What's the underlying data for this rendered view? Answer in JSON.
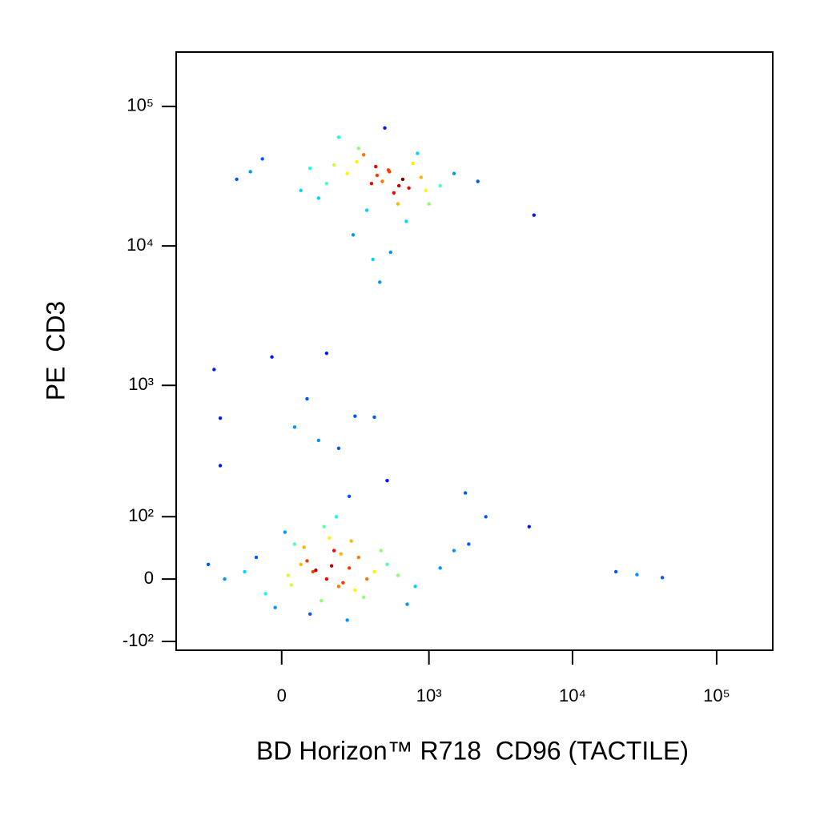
{
  "chart_data": {
    "type": "scatter",
    "x_label": "BD Horizon™ R718  CD96 (TACTILE)",
    "y_label": "PE  CD3",
    "x_scale": "biexponential",
    "y_scale": "biexponential",
    "xlim": [
      -500,
      245000
    ],
    "ylim": [
      -120,
      245000
    ],
    "xticks": [
      0,
      {
        "value": 1000,
        "label": "10³"
      },
      {
        "value": 10000,
        "label": "10⁴"
      },
      {
        "value": 100000,
        "label": "10⁵"
      }
    ],
    "yticks": [
      {
        "value": -100,
        "label": "-10²"
      },
      0,
      {
        "value": 100,
        "label": "10²"
      },
      {
        "value": 1000,
        "label": "10³"
      },
      {
        "value": 10000,
        "label": "10⁴"
      },
      {
        "value": 100000,
        "label": "10⁵"
      }
    ],
    "color_map": "jet",
    "series": [
      {
        "x": [
          420,
          380,
          510,
          290,
          650,
          720,
          180,
          240,
          330,
          460,
          560,
          880,
          1200,
          90,
          -60,
          -150,
          120,
          300,
          410,
          520,
          610,
          770,
          950,
          1500,
          2200,
          350,
          270,
          200,
          480,
          600,
          690,
          830,
          150,
          60,
          -100,
          390,
          440,
          530,
          1000,
          5400,
          100,
          150,
          60,
          200,
          250,
          20,
          -50,
          -120,
          300,
          180,
          130,
          80,
          220,
          350,
          400,
          500,
          40,
          -20,
          160,
          280,
          90,
          210,
          600,
          800,
          1200,
          -200,
          -280,
          10,
          140,
          330,
          70,
          190,
          240,
          450,
          110,
          30,
          260,
          700,
          -80,
          170,
          -250,
          -220,
          -30,
          150,
          280,
          80,
          120,
          400,
          500,
          200,
          -220,
          40,
          250,
          1800,
          2500,
          5000,
          20000,
          28000,
          42000,
          1500,
          1900
        ],
        "y": [
          32000,
          28000,
          35000,
          40000,
          30000,
          26000,
          38000,
          33000,
          45000,
          29000,
          24000,
          31000,
          27000,
          36000,
          42000,
          30000,
          22000,
          50000,
          37000,
          34000,
          27000,
          39000,
          25000,
          33000,
          29000,
          18000,
          12000,
          60000,
          70000,
          20000,
          15000,
          46000,
          28000,
          25000,
          34000,
          8000,
          5500,
          9000,
          20000,
          16600,
          10,
          0,
          20,
          -10,
          15,
          5,
          -20,
          10,
          30,
          40,
          -30,
          25,
          -5,
          0,
          10,
          20,
          50,
          -40,
          60,
          -15,
          -50,
          35,
          5,
          -10,
          15,
          0,
          20,
          70,
          80,
          -25,
          45,
          100,
          -60,
          40,
          12,
          -8,
          55,
          -35,
          30,
          18,
          1300,
          580,
          1600,
          1700,
          600,
          800,
          400,
          590,
          200,
          350,
          260,
          500,
          150,
          160,
          100,
          80,
          10,
          6,
          2,
          40,
          50
        ]
      }
    ]
  }
}
